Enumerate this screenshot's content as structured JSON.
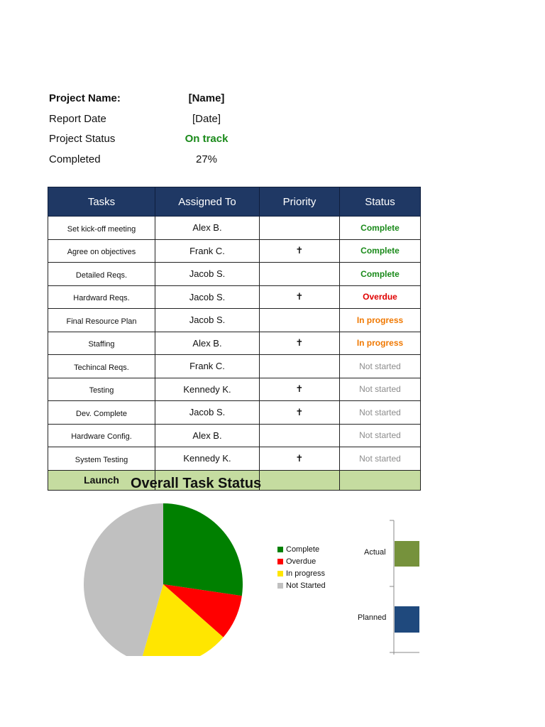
{
  "summary": {
    "project_name_label": "Project Name:",
    "project_name_value": "[Name]",
    "report_date_label": "Report Date",
    "report_date_value": "[Date]",
    "project_status_label": "Project Status",
    "project_status_value": "On track",
    "completed_label": "Completed",
    "completed_value": "27%"
  },
  "table": {
    "headers": [
      "Tasks",
      "Assigned To",
      "Priority",
      "Status"
    ],
    "rows": [
      {
        "task": "Set kick-off meeting",
        "assigned": "Alex B.",
        "priority": "",
        "status": "Complete"
      },
      {
        "task": "Agree on objectives",
        "assigned": "Frank C.",
        "priority": "✝",
        "status": "Complete"
      },
      {
        "task": "Detailed Reqs.",
        "assigned": "Jacob S.",
        "priority": "",
        "status": "Complete"
      },
      {
        "task": "Hardward Reqs.",
        "assigned": "Jacob S.",
        "priority": "✝",
        "status": "Overdue"
      },
      {
        "task": "Final Resource Plan",
        "assigned": "Jacob S.",
        "priority": "",
        "status": "In progress"
      },
      {
        "task": "Staffing",
        "assigned": "Alex B.",
        "priority": "✝",
        "status": "In progress"
      },
      {
        "task": "Techincal Reqs.",
        "assigned": "Frank C.",
        "priority": "",
        "status": "Not started"
      },
      {
        "task": "Testing",
        "assigned": "Kennedy K.",
        "priority": "✝",
        "status": "Not started"
      },
      {
        "task": "Dev. Complete",
        "assigned": "Jacob S.",
        "priority": "✝",
        "status": "Not started"
      },
      {
        "task": "Hardware Config.",
        "assigned": "Alex B.",
        "priority": "",
        "status": "Not started"
      },
      {
        "task": "System Testing",
        "assigned": "Kennedy K.",
        "priority": "✝",
        "status": "Not started"
      }
    ],
    "launch_label": "Launch"
  },
  "colors": {
    "header_bg": "#1f3864",
    "complete": "#008000",
    "overdue": "#ff0000",
    "in_progress": "#ffe600",
    "not_started": "#c0c0c0",
    "actual_bar": "#76923c",
    "planned_bar": "#1f497d",
    "launch_bg": "#c5dca0"
  },
  "chart_data": [
    {
      "type": "pie",
      "title": "Overall Task Status",
      "labels": [
        "Complete",
        "Overdue",
        "In progress",
        "Not Started"
      ],
      "values": [
        3,
        1,
        2,
        5
      ],
      "colors": [
        "#008000",
        "#ff0000",
        "#ffe600",
        "#c0c0c0"
      ],
      "legend": "right"
    },
    {
      "type": "bar",
      "orientation": "horizontal",
      "categories": [
        "Actual",
        "Planned"
      ],
      "colors": [
        "#76923c",
        "#1f497d"
      ]
    }
  ]
}
